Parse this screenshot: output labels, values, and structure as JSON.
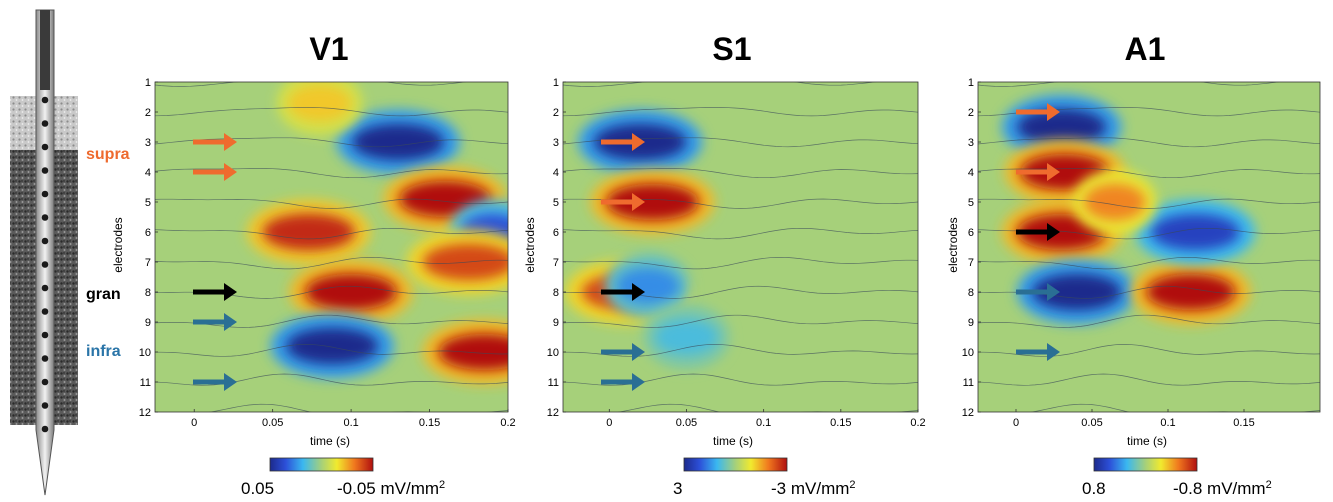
{
  "layer_labels": [
    {
      "text": "supra",
      "color": "#ee6a2e"
    },
    {
      "text": "gran",
      "color": "#000000"
    },
    {
      "text": "infra",
      "color": "#2a75a8"
    }
  ],
  "colors": {
    "arrow_orange": "#ef6b2e",
    "arrow_black": "#000000",
    "arrow_blue": "#2a6f94",
    "background_green": "#a6d07a"
  },
  "chart_data": [
    {
      "type": "heatmap",
      "title": "V1",
      "xlabel": "time (s)",
      "ylabel": "electrodes",
      "xlim": [
        -0.025,
        0.2
      ],
      "ylim": [
        1,
        12
      ],
      "x_ticks": [
        0,
        0.05,
        0.1,
        0.15,
        0.2
      ],
      "x_tick_labels": [
        "0",
        "0.05",
        "0.1",
        "0.15",
        "0.2"
      ],
      "y_ticks": [
        1,
        2,
        3,
        4,
        5,
        6,
        7,
        8,
        9,
        10,
        11,
        12
      ],
      "colorbar": {
        "min_label": "0.05",
        "max_label": "-0.05",
        "unit": "mV/mm",
        "unit_sup": "2"
      },
      "arrows": [
        {
          "electrode": 3,
          "color": "orange"
        },
        {
          "electrode": 4,
          "color": "orange"
        },
        {
          "electrode": 8,
          "color": "black"
        },
        {
          "electrode": 9,
          "color": "blue"
        },
        {
          "electrode": 11,
          "color": "blue"
        }
      ],
      "blobs": [
        {
          "t": 0.13,
          "e": 3,
          "value": -1.0
        },
        {
          "t": 0.16,
          "e": 4.9,
          "value": 1.0
        },
        {
          "t": 0.073,
          "e": 6,
          "value": 0.9
        },
        {
          "t": 0.19,
          "e": 6,
          "value": -0.7
        },
        {
          "t": 0.1,
          "e": 8,
          "value": 1.0
        },
        {
          "t": 0.175,
          "e": 7,
          "value": 0.8
        },
        {
          "t": 0.088,
          "e": 9.8,
          "value": -1.0
        },
        {
          "t": 0.185,
          "e": 10,
          "value": 1.0
        },
        {
          "t": 0.08,
          "e": 1.7,
          "value": 0.4
        }
      ]
    },
    {
      "type": "heatmap",
      "title": "S1",
      "xlabel": "time (s)",
      "ylabel": "electrodes",
      "xlim": [
        -0.03,
        0.2
      ],
      "ylim": [
        1,
        12
      ],
      "x_ticks": [
        0,
        0.05,
        0.1,
        0.15,
        0.2
      ],
      "x_tick_labels": [
        "0",
        "0.05",
        "0.1",
        "0.15",
        "0.2"
      ],
      "y_ticks": [
        1,
        2,
        3,
        4,
        5,
        6,
        7,
        8,
        9,
        10,
        11,
        12
      ],
      "colorbar": {
        "min_label": "3",
        "max_label": "-3",
        "unit": "mV/mm",
        "unit_sup": "2"
      },
      "arrows": [
        {
          "electrode": 3,
          "color": "orange"
        },
        {
          "electrode": 5,
          "color": "orange"
        },
        {
          "electrode": 8,
          "color": "black"
        },
        {
          "electrode": 10,
          "color": "blue"
        },
        {
          "electrode": 11,
          "color": "blue"
        }
      ],
      "blobs": [
        {
          "t": 0.02,
          "e": 3,
          "value": -1.0
        },
        {
          "t": 0.028,
          "e": 5,
          "value": 1.0
        },
        {
          "t": 0.012,
          "e": 8,
          "value": 0.8
        },
        {
          "t": 0.025,
          "e": 7.8,
          "value": -0.5
        },
        {
          "t": 0.05,
          "e": 9.5,
          "value": -0.3
        }
      ]
    },
    {
      "type": "heatmap",
      "title": "A1",
      "xlabel": "time (s)",
      "ylabel": "electrodes",
      "xlim": [
        -0.025,
        0.2
      ],
      "ylim": [
        1,
        12
      ],
      "x_ticks": [
        0,
        0.05,
        0.1,
        0.15
      ],
      "x_tick_labels": [
        "0",
        "0.05",
        "0.1",
        "0.15"
      ],
      "y_ticks": [
        1,
        2,
        3,
        4,
        5,
        6,
        7,
        8,
        9,
        10,
        11,
        12
      ],
      "colorbar": {
        "min_label": "0.8",
        "max_label": "-0.8",
        "unit": "mV/mm",
        "unit_sup": "2"
      },
      "arrows": [
        {
          "electrode": 2,
          "color": "orange"
        },
        {
          "electrode": 4,
          "color": "orange"
        },
        {
          "electrode": 6,
          "color": "black"
        },
        {
          "electrode": 8,
          "color": "blue"
        },
        {
          "electrode": 10,
          "color": "blue"
        }
      ],
      "blobs": [
        {
          "t": 0.03,
          "e": 2.5,
          "value": -1.0
        },
        {
          "t": 0.032,
          "e": 4,
          "value": 1.0
        },
        {
          "t": 0.03,
          "e": 6,
          "value": 1.0
        },
        {
          "t": 0.04,
          "e": 8,
          "value": -1.0
        },
        {
          "t": 0.115,
          "e": 8,
          "value": 1.0
        },
        {
          "t": 0.118,
          "e": 6,
          "value": -0.8
        },
        {
          "t": 0.065,
          "e": 5,
          "value": 0.6
        }
      ]
    }
  ]
}
